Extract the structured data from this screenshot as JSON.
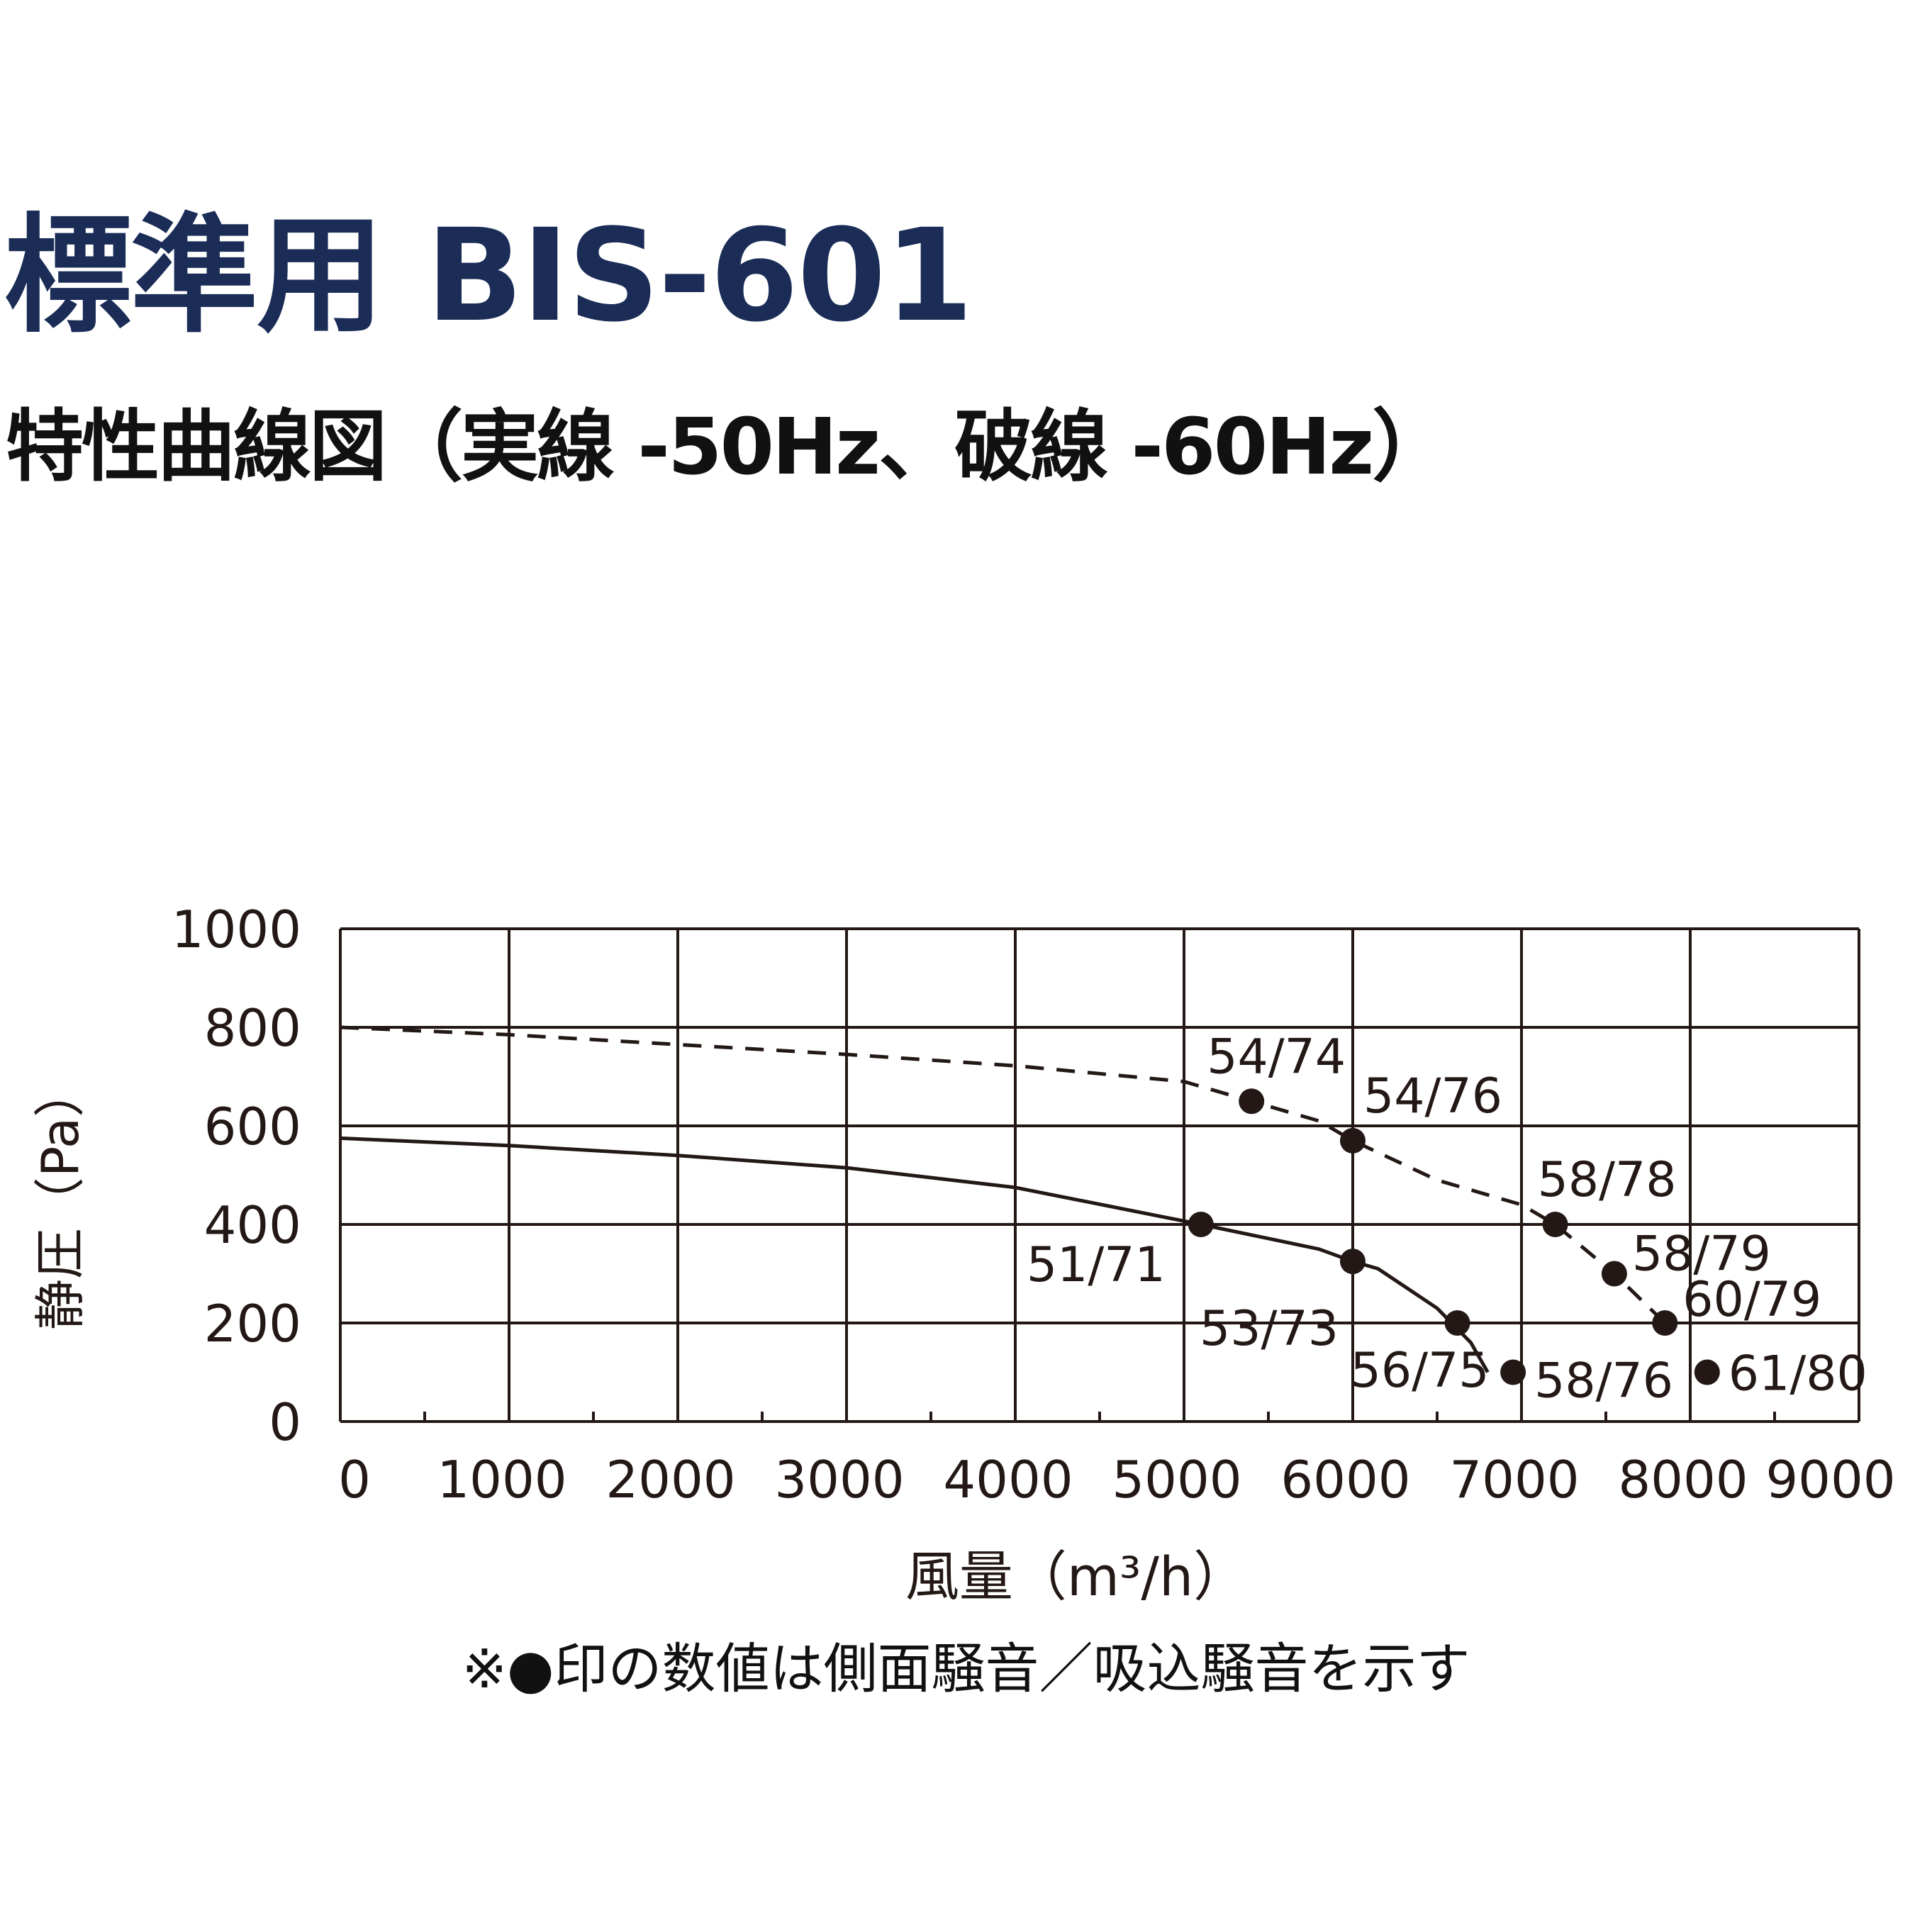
{
  "title": "標準用 BIS-601",
  "subtitle": "特性曲線図（実線 -50Hz、破線 -60Hz）",
  "footnote": "※●印の数値は側面騒音／吸込騒音を示す",
  "chart_data": {
    "type": "line",
    "title": "",
    "xlabel": "風量（m³/h）",
    "ylabel": "静圧（Pa）",
    "xlim": [
      0,
      9000
    ],
    "ylim": [
      0,
      1000
    ],
    "xticks": [
      0,
      1000,
      2000,
      3000,
      4000,
      5000,
      6000,
      7000,
      8000,
      9000
    ],
    "yticks": [
      0,
      200,
      400,
      600,
      800,
      1000
    ],
    "grid": true,
    "colors": {
      "line": "#231815",
      "grid": "#231815"
    },
    "series": [
      {
        "name": "50Hz",
        "style": "solid",
        "curve": [
          [
            0,
            575
          ],
          [
            1000,
            560
          ],
          [
            2000,
            540
          ],
          [
            3000,
            515
          ],
          [
            4000,
            475
          ],
          [
            5100,
            400
          ],
          [
            5800,
            350
          ],
          [
            6000,
            325
          ],
          [
            6150,
            310
          ],
          [
            6500,
            230
          ],
          [
            6700,
            160
          ],
          [
            6800,
            100
          ]
        ],
        "points": [
          {
            "x": 5100,
            "y": 400,
            "label": "51/71"
          },
          {
            "x": 6000,
            "y": 325,
            "label": "53/73"
          },
          {
            "x": 6620,
            "y": 200,
            "label": "56/75"
          },
          {
            "x": 6950,
            "y": 100,
            "label": "58/76"
          }
        ]
      },
      {
        "name": "60Hz",
        "style": "dashed",
        "curve": [
          [
            0,
            800
          ],
          [
            1000,
            785
          ],
          [
            2000,
            765
          ],
          [
            3000,
            745
          ],
          [
            4000,
            722
          ],
          [
            5000,
            690
          ],
          [
            5400,
            650
          ],
          [
            5800,
            610
          ],
          [
            6000,
            570
          ],
          [
            6500,
            490
          ],
          [
            7000,
            440
          ],
          [
            7200,
            400
          ],
          [
            7550,
            300
          ],
          [
            7850,
            200
          ]
        ],
        "points": [
          {
            "x": 5400,
            "y": 650,
            "label": "54/74"
          },
          {
            "x": 6000,
            "y": 570,
            "label": "54/76"
          },
          {
            "x": 7200,
            "y": 400,
            "label": "58/78"
          },
          {
            "x": 7550,
            "y": 300,
            "label": "58/79"
          },
          {
            "x": 7850,
            "y": 200,
            "label": "60/79"
          },
          {
            "x": 8100,
            "y": 100,
            "label": "61/80"
          }
        ]
      }
    ]
  }
}
